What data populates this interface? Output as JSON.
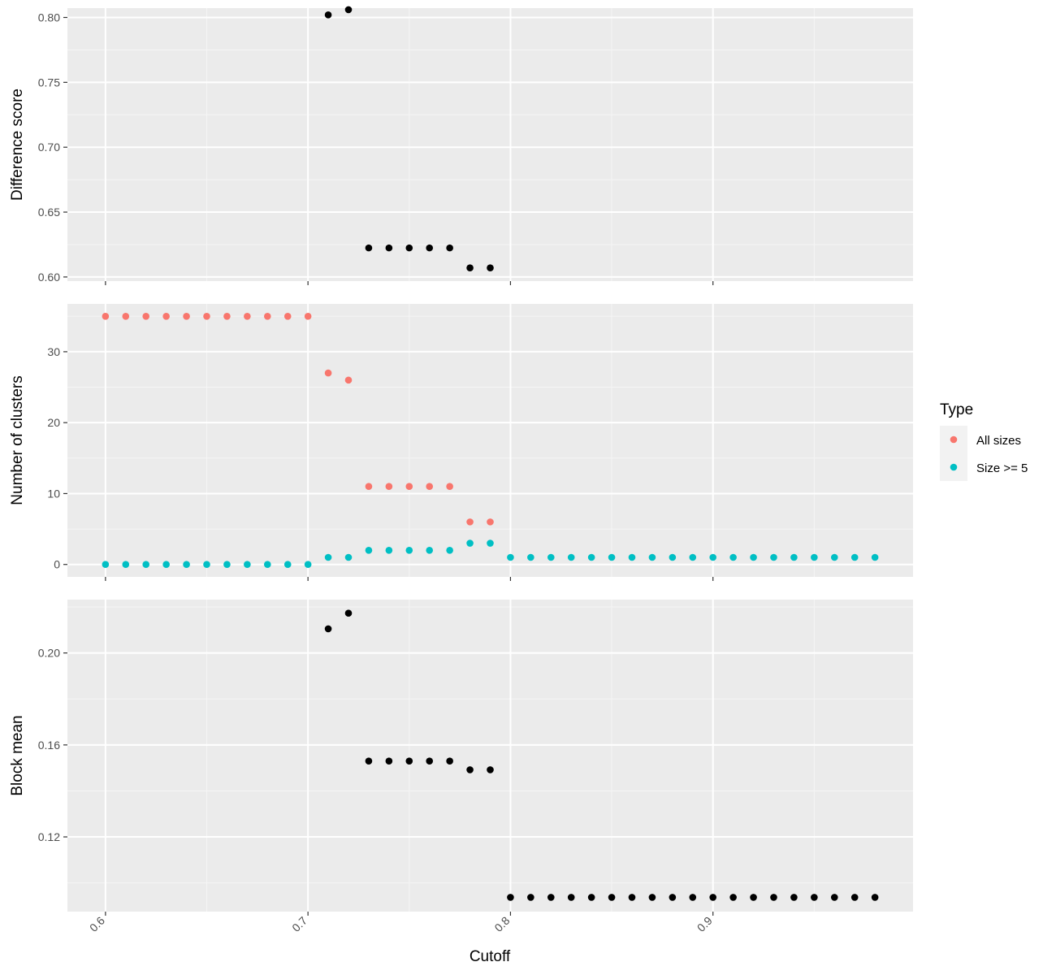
{
  "chart_data": {
    "type": "scatter",
    "xlabel": "Cutoff",
    "x_ticks": [
      "0.6",
      "0.7",
      "0.8",
      "0.9"
    ],
    "xlim": [
      0.5812,
      0.9988
    ],
    "x_minor_breaks": [
      0.65,
      0.75,
      0.85,
      0.95
    ],
    "grid": true,
    "panel_background": "#EBEBEB",
    "legend": {
      "title": "Type",
      "placement": "right",
      "entries": [
        {
          "label": "All sizes",
          "color": "#F8766D"
        },
        {
          "label": "Size >= 5",
          "color": "#00BFC4"
        }
      ]
    },
    "panels": [
      {
        "ylabel": "Difference score",
        "ylim": [
          0.5968,
          0.8072
        ],
        "y_ticks": [
          0.6,
          0.65,
          0.7,
          0.75,
          0.8
        ],
        "y_tick_labels": [
          "0.60",
          "0.65",
          "0.70",
          "0.75",
          "0.80"
        ],
        "y_minor_breaks": [
          0.625,
          0.675,
          0.725,
          0.775
        ],
        "show_x_labels": false,
        "series": [
          {
            "color": "#000000",
            "x": [
              0.71,
              0.72,
              0.73,
              0.74,
              0.75,
              0.76,
              0.77,
              0.78,
              0.79
            ],
            "y": [
              0.802,
              0.806,
              0.6224,
              0.6224,
              0.6224,
              0.6224,
              0.6224,
              0.607,
              0.607
            ]
          }
        ]
      },
      {
        "ylabel": "Number of clusters",
        "ylim": [
          -1.75,
          36.75
        ],
        "y_ticks": [
          0,
          10,
          20,
          30
        ],
        "y_tick_labels": [
          "0",
          "10",
          "20",
          "30"
        ],
        "y_minor_breaks": [
          5,
          15,
          25,
          35
        ],
        "show_x_labels": false,
        "series": [
          {
            "name": "All sizes",
            "color": "#F8766D",
            "x": [
              0.6,
              0.61,
              0.62,
              0.63,
              0.64,
              0.65,
              0.66,
              0.67,
              0.68,
              0.69,
              0.7,
              0.71,
              0.72,
              0.73,
              0.74,
              0.75,
              0.76,
              0.77,
              0.78,
              0.79
            ],
            "y": [
              35,
              35,
              35,
              35,
              35,
              35,
              35,
              35,
              35,
              35,
              35,
              27,
              26,
              11,
              11,
              11,
              11,
              11,
              6,
              6
            ]
          },
          {
            "name": "Size >= 5",
            "color": "#00BFC4",
            "x": [
              0.6,
              0.61,
              0.62,
              0.63,
              0.64,
              0.65,
              0.66,
              0.67,
              0.68,
              0.69,
              0.7,
              0.71,
              0.72,
              0.73,
              0.74,
              0.75,
              0.76,
              0.77,
              0.78,
              0.79,
              0.8,
              0.81,
              0.82,
              0.83,
              0.84,
              0.85,
              0.86,
              0.87,
              0.88,
              0.89,
              0.9,
              0.91,
              0.92,
              0.93,
              0.94,
              0.95,
              0.96,
              0.97,
              0.98
            ],
            "y": [
              0,
              0,
              0,
              0,
              0,
              0,
              0,
              0,
              0,
              0,
              0,
              1,
              1,
              2,
              2,
              2,
              2,
              2,
              3,
              3,
              1,
              1,
              1,
              1,
              1,
              1,
              1,
              1,
              1,
              1,
              1,
              1,
              1,
              1,
              1,
              1,
              1,
              1,
              1
            ]
          }
        ]
      },
      {
        "ylabel": "Block mean",
        "ylim": [
          0.0875,
          0.2232
        ],
        "y_ticks": [
          0.12,
          0.16,
          0.2
        ],
        "y_tick_labels": [
          "0.12",
          "0.16",
          "0.20"
        ],
        "y_minor_breaks": [
          0.1,
          0.14,
          0.18,
          0.22
        ],
        "show_x_labels": true,
        "series": [
          {
            "color": "#000000",
            "x": [
              0.71,
              0.72,
              0.73,
              0.74,
              0.75,
              0.76,
              0.77,
              0.78,
              0.79,
              0.8,
              0.81,
              0.82,
              0.83,
              0.84,
              0.85,
              0.86,
              0.87,
              0.88,
              0.89,
              0.9,
              0.91,
              0.92,
              0.93,
              0.94,
              0.95,
              0.96,
              0.97,
              0.98
            ],
            "y": [
              0.2105,
              0.2173,
              0.153,
              0.153,
              0.153,
              0.153,
              0.153,
              0.1492,
              0.1492,
              0.0937,
              0.0937,
              0.0937,
              0.0937,
              0.0937,
              0.0937,
              0.0937,
              0.0937,
              0.0937,
              0.0937,
              0.0937,
              0.0937,
              0.0937,
              0.0937,
              0.0937,
              0.0937,
              0.0937,
              0.0937,
              0.0937
            ]
          }
        ]
      }
    ]
  }
}
